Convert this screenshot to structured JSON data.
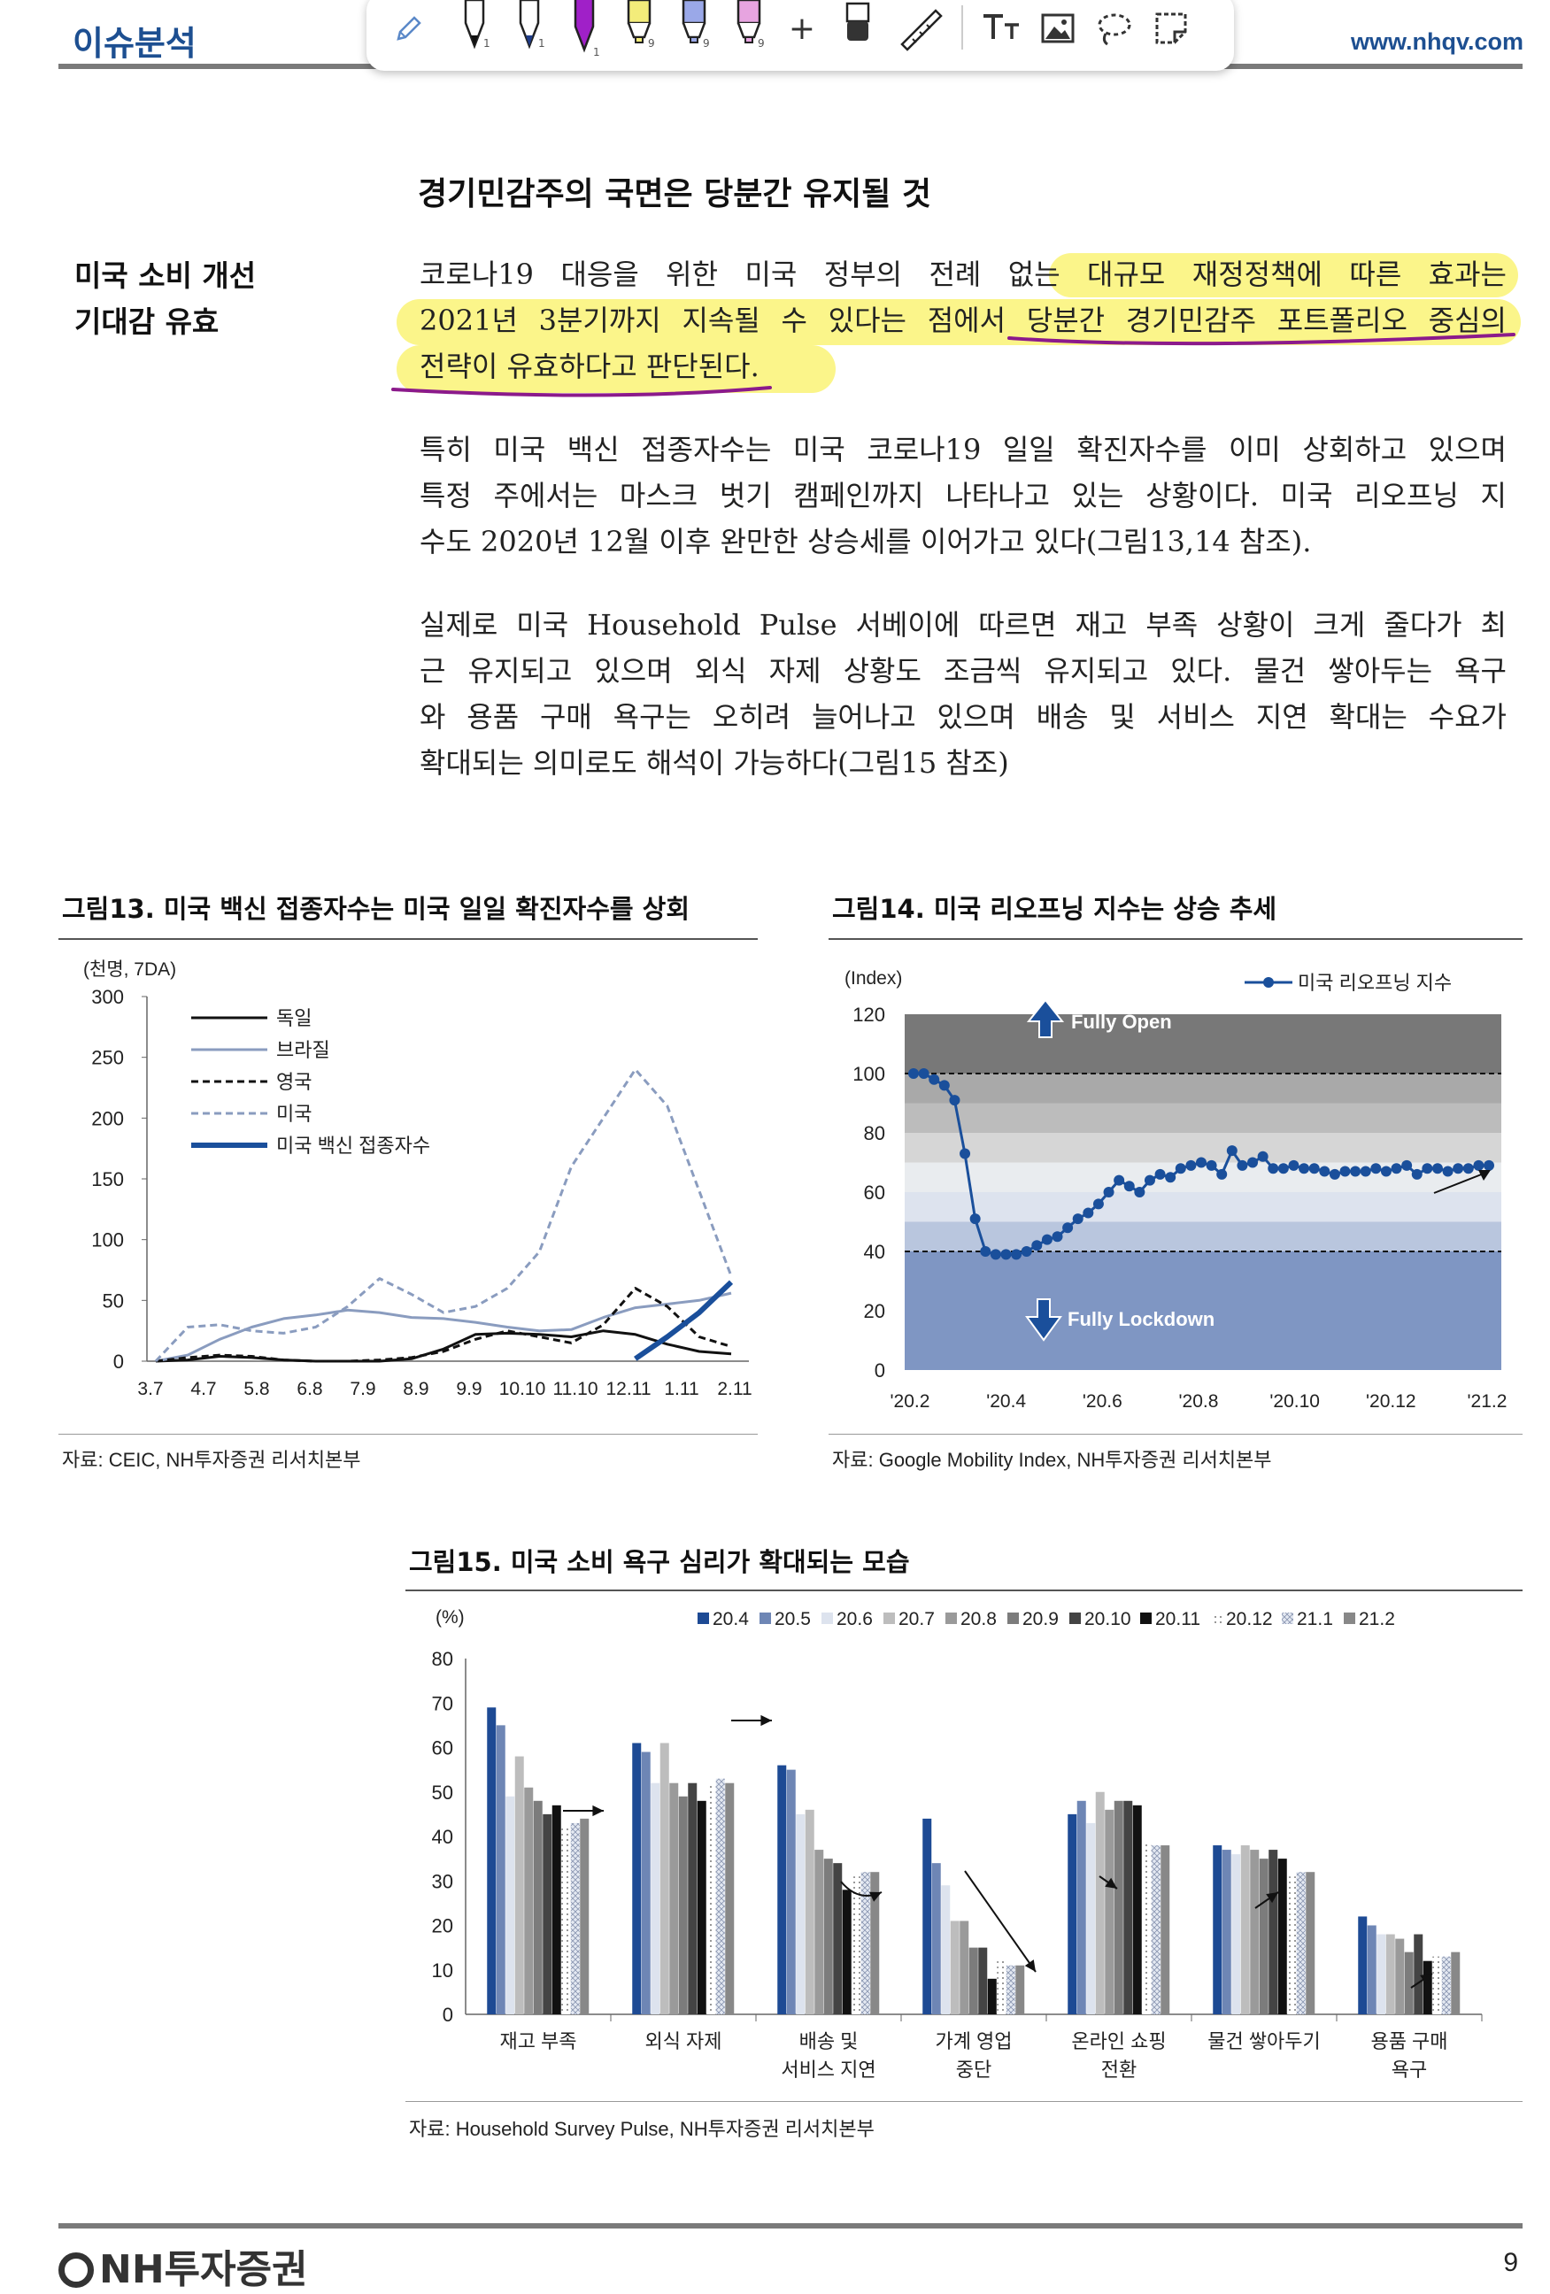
{
  "header": {
    "section_title": "이슈분석",
    "url": "www.nhqv.com"
  },
  "toolbar": {
    "pen_label": "1",
    "pen2_label": "1",
    "pen3_label": "1",
    "marker1_label": "9",
    "marker2_label": "9",
    "marker3_label": "9",
    "add_label": "+"
  },
  "section": {
    "heading": "경기민감주의 국면은 당분간 유지될 것",
    "side_label_line1": "미국 소비 개선",
    "side_label_line2": "기대감 유효",
    "para1_lines": [
      "코로나19 대응을 위한 미국 정부의 전례 없는 대규모 재정정책에 따른 효과는",
      "2021년 3분기까지 지속될 수 있다는 점에서 당분간 경기민감주 포트폴리오 중심의",
      "전략이 유효하다고 판단된다."
    ],
    "para2_lines": [
      "특히 미국 백신 접종자수는 미국 코로나19 일일 확진자수를 이미 상회하고 있으며",
      "특정 주에서는 마스크 벗기 캠페인까지 나타나고 있는 상황이다. 미국 리오프닝 지",
      "수도 2020년 12월 이후 완만한 상승세를 이어가고 있다(그림13,14 참조)."
    ],
    "para3_lines": [
      "실제로 미국 Household Pulse 서베이에 따르면 재고 부족 상황이 크게 줄다가 최",
      "근 유지되고 있으며 외식 자제 상황도 조금씩 유지되고 있다. 물건 쌓아두는 욕구",
      "와 용품 구매 욕구는 오히려 늘어나고 있으며 배송 및 서비스 지연 확대는 수요가",
      "확대되는 의미로도 해석이 가능하다(그림15 참조)"
    ]
  },
  "fig13": {
    "title": "그림13. 미국 백신 접종자수는 미국 일일 확진자수를 상회",
    "source": "자료: CEIC, NH투자증권 리서치본부"
  },
  "fig14": {
    "title": "그림14. 미국 리오프닝 지수는 상승 추세",
    "source": "자료: Google Mobility Index, NH투자증권 리서치본부"
  },
  "fig15": {
    "title": "그림15. 미국 소비 욕구 심리가 확대되는 모습",
    "source": "자료: Household Survey Pulse, NH투자증권 리서치본부"
  },
  "footer": {
    "logo": "NH투자증권",
    "page": "9"
  },
  "colors": {
    "brand": "#1d4f91",
    "highlight": "#fbf58a",
    "underline": "#8b1a8b"
  },
  "chart_data": [
    {
      "type": "line",
      "unit_label": "(천명, 7DA)",
      "x_ticks": [
        "3.7",
        "4.7",
        "5.8",
        "6.8",
        "7.9",
        "8.9",
        "9.9",
        "10.10",
        "11.10",
        "12.11",
        "1.11",
        "2.11"
      ],
      "ylim": [
        0,
        300
      ],
      "y_ticks": [
        0,
        50,
        100,
        150,
        200,
        250,
        300
      ],
      "legend_position": "top-left",
      "series": [
        {
          "name": "독일",
          "style": "solid-black",
          "values": [
            0,
            1,
            4,
            3,
            1,
            0,
            0,
            0,
            2,
            10,
            22,
            23,
            22,
            20,
            25,
            22,
            14,
            8,
            6
          ]
        },
        {
          "name": "브라질",
          "style": "solid-gray",
          "values": [
            0,
            5,
            18,
            28,
            35,
            38,
            42,
            40,
            36,
            35,
            32,
            28,
            25,
            26,
            36,
            44,
            47,
            50,
            56
          ]
        },
        {
          "name": "영국",
          "style": "dash-black",
          "values": [
            0,
            3,
            5,
            4,
            1,
            0,
            0,
            1,
            3,
            8,
            18,
            25,
            20,
            15,
            30,
            60,
            45,
            20,
            12
          ]
        },
        {
          "name": "미국",
          "style": "dash-gray",
          "values": [
            0,
            28,
            30,
            25,
            23,
            28,
            45,
            68,
            55,
            40,
            45,
            60,
            90,
            160,
            200,
            240,
            210,
            140,
            70
          ]
        },
        {
          "name": "미국 백신 접종자수",
          "style": "thick-blue",
          "values": [
            null,
            null,
            null,
            null,
            null,
            null,
            null,
            null,
            null,
            null,
            null,
            null,
            null,
            null,
            null,
            2,
            20,
            40,
            65
          ]
        }
      ]
    },
    {
      "type": "line",
      "unit_label": "(Index)",
      "legend": "미국 리오프닝 지수",
      "legend_position": "top-right",
      "x_ticks": [
        "'20.2",
        "'20.4",
        "'20.6",
        "'20.8",
        "'20.10",
        "'20.12",
        "'21.2"
      ],
      "ylim": [
        0,
        120
      ],
      "y_ticks": [
        0,
        20,
        40,
        60,
        80,
        100,
        120
      ],
      "annotations": [
        "Fully Open",
        "Fully Lockdown"
      ],
      "reference_lines": [
        100,
        40
      ],
      "series": [
        {
          "name": "미국 리오프닝 지수",
          "values": [
            100,
            100,
            98,
            96,
            91,
            73,
            51,
            40,
            39,
            39,
            39,
            40,
            42,
            44,
            45,
            48,
            51,
            53,
            56,
            60,
            64,
            62,
            60,
            64,
            66,
            65,
            68,
            69,
            70,
            69,
            66,
            74,
            69,
            70,
            72,
            68,
            68,
            69,
            68,
            68,
            67,
            66,
            67,
            67,
            67,
            68,
            67,
            68,
            69,
            66,
            68,
            68,
            67,
            68,
            68,
            69,
            69
          ]
        }
      ]
    },
    {
      "type": "bar",
      "unit_label": "(%)",
      "ylim": [
        0,
        80
      ],
      "y_ticks": [
        0,
        10,
        20,
        30,
        40,
        50,
        60,
        70,
        80
      ],
      "legend_position": "top-right",
      "categories": [
        "재고 부족",
        "외식 자제",
        "배송 및\n서비스 지연",
        "가계 영업\n중단",
        "온라인 쇼핑\n전환",
        "물건 쌓아두기",
        "용품 구매\n욕구"
      ],
      "series": [
        {
          "name": "20.4",
          "color": "#1d4a94",
          "values": [
            69,
            61,
            56,
            44,
            45,
            38,
            22
          ]
        },
        {
          "name": "20.5",
          "color": "#6e86b5",
          "values": [
            65,
            59,
            55,
            34,
            48,
            37,
            20
          ]
        },
        {
          "name": "20.6",
          "color": "#dde3ee",
          "values": [
            49,
            52,
            45,
            29,
            43,
            36,
            18
          ]
        },
        {
          "name": "20.7",
          "color": "#bdbdbd",
          "values": [
            58,
            61,
            46,
            21,
            50,
            38,
            18
          ]
        },
        {
          "name": "20.8",
          "color": "#9a9a9a",
          "values": [
            51,
            52,
            37,
            21,
            46,
            37,
            17
          ]
        },
        {
          "name": "20.9",
          "color": "#7c7c7c",
          "values": [
            48,
            49,
            35,
            15,
            48,
            35,
            14
          ]
        },
        {
          "name": "20.10",
          "color": "#444444",
          "values": [
            45,
            52,
            34,
            15,
            48,
            37,
            18
          ]
        },
        {
          "name": "20.11",
          "color": "#111111",
          "values": [
            47,
            48,
            28,
            8,
            47,
            35,
            12
          ]
        },
        {
          "name": "20.12",
          "color": "#ffffff",
          "values": [
            42,
            52,
            31,
            12,
            39,
            31,
            13
          ]
        },
        {
          "name": "21.1",
          "color": "#c9d0e0",
          "values": [
            43,
            53,
            32,
            11,
            38,
            32,
            13
          ]
        },
        {
          "name": "21.2",
          "color": "#888888",
          "values": [
            44,
            52,
            32,
            11,
            38,
            32,
            14
          ]
        }
      ]
    }
  ]
}
